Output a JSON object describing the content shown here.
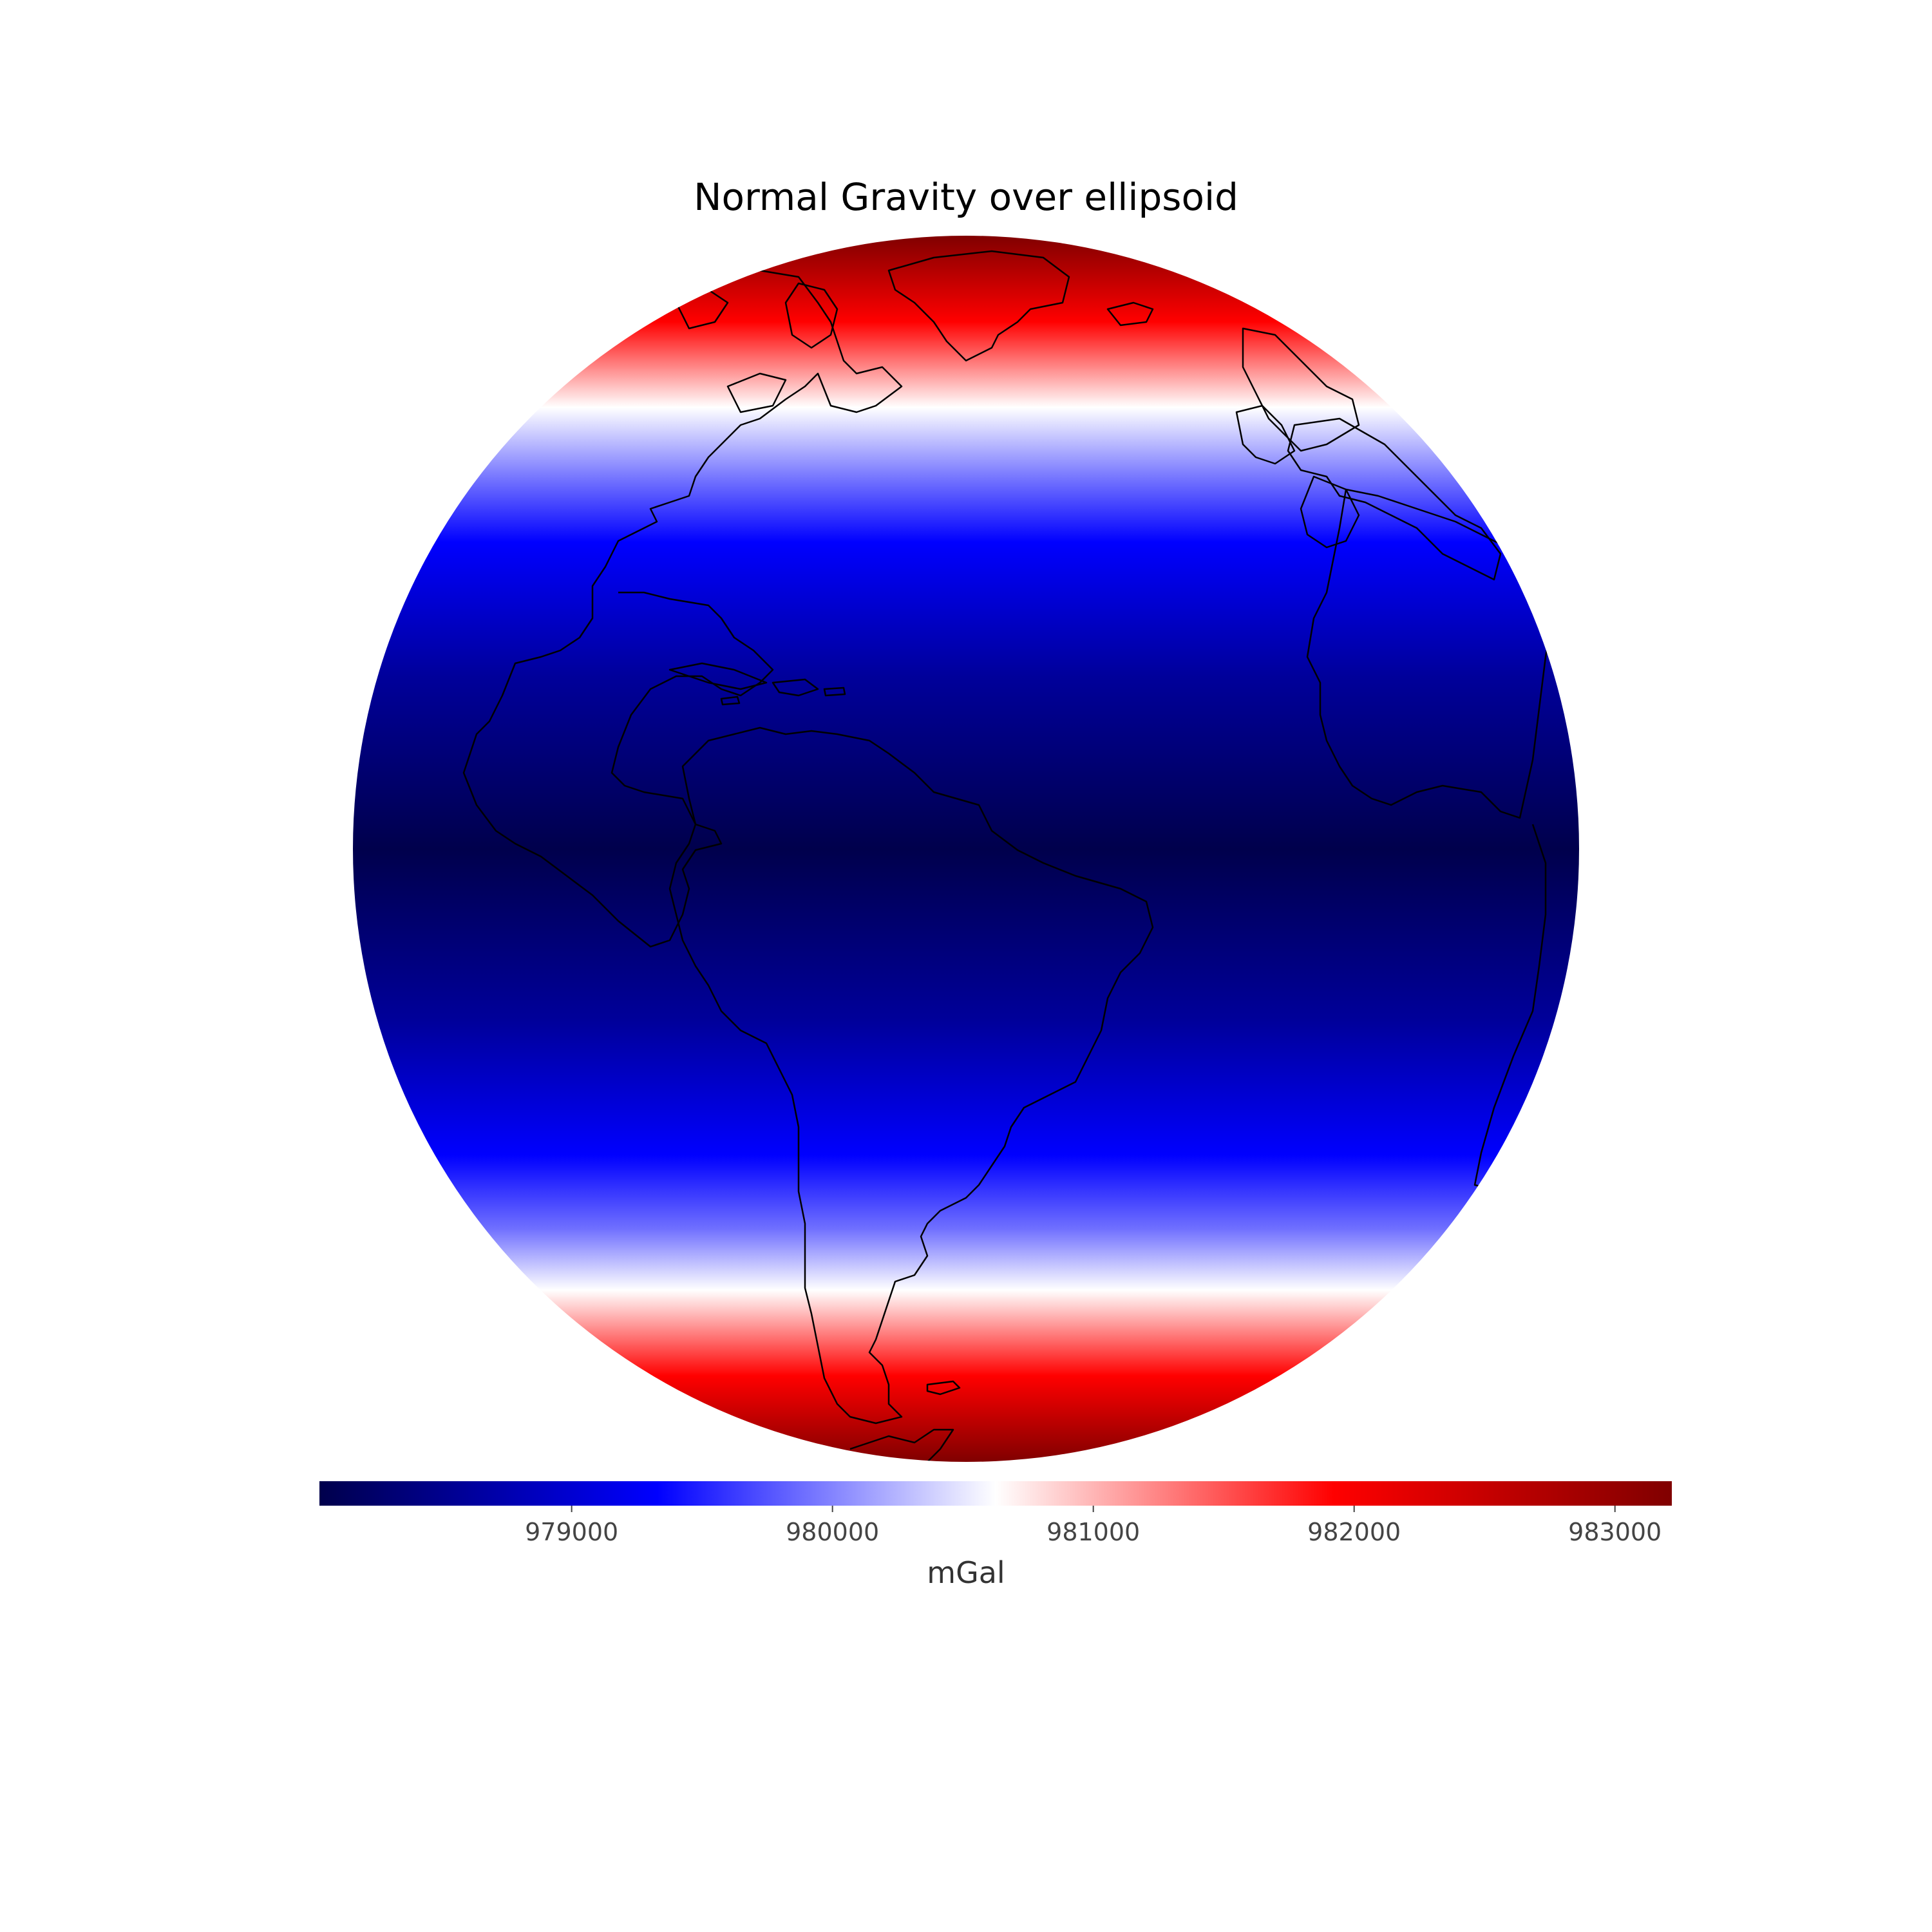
{
  "title": "Normal Gravity over ellipsoid",
  "projection": "orthographic",
  "colormap": "seismic",
  "colors": {
    "low": "#00004c",
    "mid": "#ffffff",
    "high": "#800000",
    "coastline": "#000000"
  },
  "chart_data": {
    "type": "heatmap",
    "title": "Normal Gravity over ellipsoid",
    "colorbar": {
      "label": "mGal",
      "range": [
        978033,
        983218
      ],
      "ticks": [
        979000,
        980000,
        981000,
        982000,
        983000
      ],
      "tick_labels": [
        "979000",
        "980000",
        "981000",
        "982000",
        "983000"
      ],
      "orientation": "horizontal",
      "placement": "bottom"
    }
  }
}
